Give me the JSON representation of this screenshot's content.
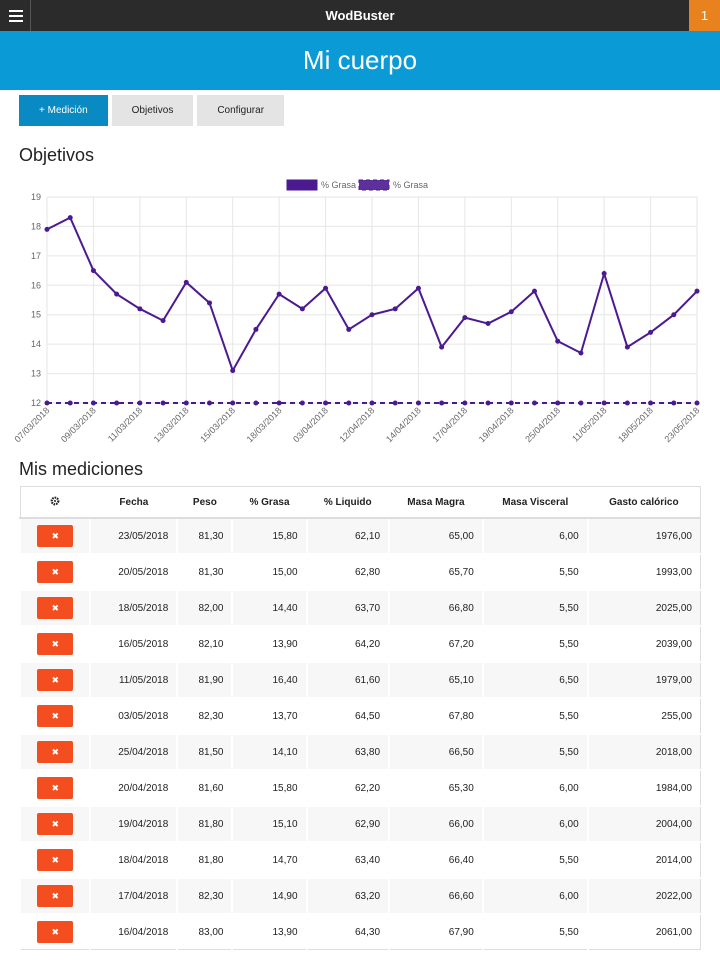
{
  "header": {
    "brand": "WodBuster",
    "badge": "1",
    "title": "Mi cuerpo"
  },
  "tabs": [
    "+ Medición",
    "Objetivos",
    "Configurar"
  ],
  "chart_heading": "Objetivos",
  "chart_data": {
    "type": "line",
    "categories": [
      "07/03/2018",
      null,
      "09/03/2018",
      null,
      "11/03/2018",
      null,
      "13/03/2018",
      null,
      "15/03/2018",
      null,
      "18/03/2018",
      null,
      "03/04/2018",
      null,
      "12/04/2018",
      null,
      "14/04/2018",
      null,
      "17/04/2018",
      null,
      "19/04/2018",
      null,
      "25/04/2018",
      null,
      "11/05/2018",
      null,
      "18/05/2018",
      null,
      "23/05/2018"
    ],
    "series": [
      {
        "name": "% Grasa",
        "color": "#4b1a91",
        "dashed": false,
        "values": [
          17.9,
          18.3,
          16.5,
          15.7,
          15.2,
          14.8,
          16.1,
          15.4,
          13.1,
          14.5,
          15.7,
          15.2,
          15.9,
          14.5,
          15.0,
          15.2,
          15.9,
          13.9,
          14.9,
          14.7,
          15.1,
          15.8,
          14.1,
          13.7,
          16.4,
          13.9,
          14.4,
          15.0,
          15.8
        ]
      },
      {
        "name": "% Grasa",
        "color": "#4b1a91",
        "dashed": true,
        "values": [
          12,
          12,
          12,
          12,
          12,
          12,
          12,
          12,
          12,
          12,
          12,
          12,
          12,
          12,
          12,
          12,
          12,
          12,
          12,
          12,
          12,
          12,
          12,
          12,
          12,
          12,
          12,
          12,
          12
        ]
      }
    ],
    "ylim": [
      12,
      19
    ],
    "yticks": [
      12,
      13,
      14,
      15,
      16,
      17,
      18,
      19
    ],
    "grid": true,
    "legend": "top"
  },
  "table_heading": "Mis mediciones",
  "table": {
    "columns": [
      "Fecha",
      "Peso",
      "% Grasa",
      "% Liquido",
      "Masa Magra",
      "Masa Visceral",
      "Gasto calórico"
    ],
    "rows": [
      [
        "23/05/2018",
        "81,30",
        "15,80",
        "62,10",
        "65,00",
        "6,00",
        "1976,00"
      ],
      [
        "20/05/2018",
        "81,30",
        "15,00",
        "62,80",
        "65,70",
        "5,50",
        "1993,00"
      ],
      [
        "18/05/2018",
        "82,00",
        "14,40",
        "63,70",
        "66,80",
        "5,50",
        "2025,00"
      ],
      [
        "16/05/2018",
        "82,10",
        "13,90",
        "64,20",
        "67,20",
        "5,50",
        "2039,00"
      ],
      [
        "11/05/2018",
        "81,90",
        "16,40",
        "61,60",
        "65,10",
        "6,50",
        "1979,00"
      ],
      [
        "03/05/2018",
        "82,30",
        "13,70",
        "64,50",
        "67,80",
        "5,50",
        "255,00"
      ],
      [
        "25/04/2018",
        "81,50",
        "14,10",
        "63,80",
        "66,50",
        "5,50",
        "2018,00"
      ],
      [
        "20/04/2018",
        "81,60",
        "15,80",
        "62,20",
        "65,30",
        "6,00",
        "1984,00"
      ],
      [
        "19/04/2018",
        "81,80",
        "15,10",
        "62,90",
        "66,00",
        "6,00",
        "2004,00"
      ],
      [
        "18/04/2018",
        "81,80",
        "14,70",
        "63,40",
        "66,40",
        "5,50",
        "2014,00"
      ],
      [
        "17/04/2018",
        "82,30",
        "14,90",
        "63,20",
        "66,60",
        "6,00",
        "2022,00"
      ],
      [
        "16/04/2018",
        "83,00",
        "13,90",
        "64,30",
        "67,90",
        "5,50",
        "2061,00"
      ]
    ]
  }
}
